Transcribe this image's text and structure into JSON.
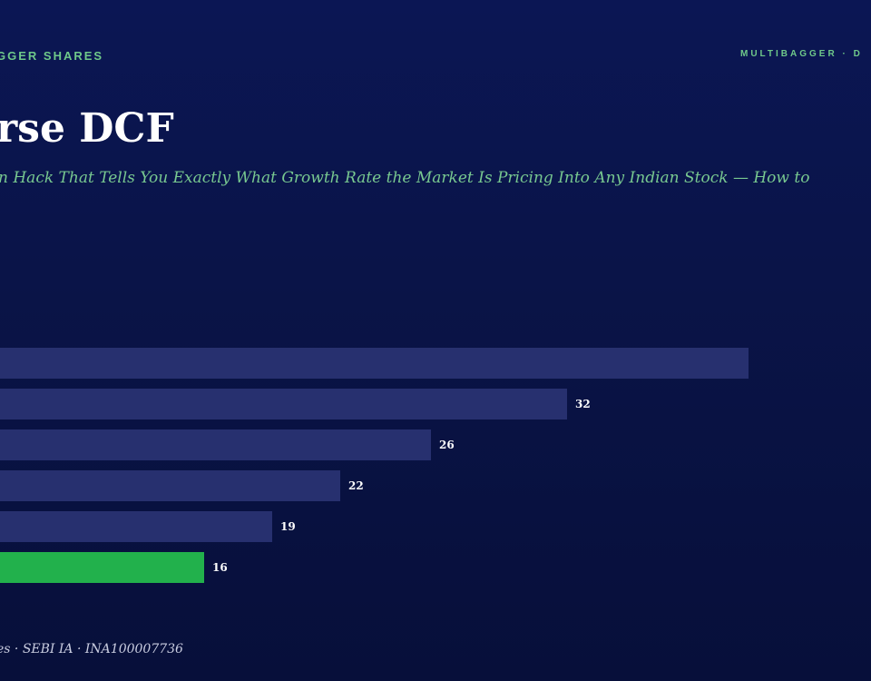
{
  "header": {
    "brand_left": "GGER SHARES",
    "brand_right": "MULTIBAGGER · D"
  },
  "title": "rse DCF",
  "subtitle": "n Hack That Tells You Exactly What Growth Rate the Market Is Pricing Into Any Indian Stock — How to",
  "footer": "es · SEBI IA · INA100007736",
  "colors": {
    "background": "#0a1448",
    "bar_default": "#27306f",
    "bar_highlight": "#22b14c",
    "accent_text": "#6fc98a",
    "value_label": "#ffffff"
  },
  "chart_data": {
    "type": "bar",
    "orientation": "horizontal",
    "values": [
      40,
      32,
      26,
      22,
      19,
      16
    ],
    "data_labels": [
      "",
      "32",
      "26",
      "22",
      "19",
      "16"
    ],
    "highlight_index": 5,
    "xlim": [
      0,
      40
    ]
  }
}
